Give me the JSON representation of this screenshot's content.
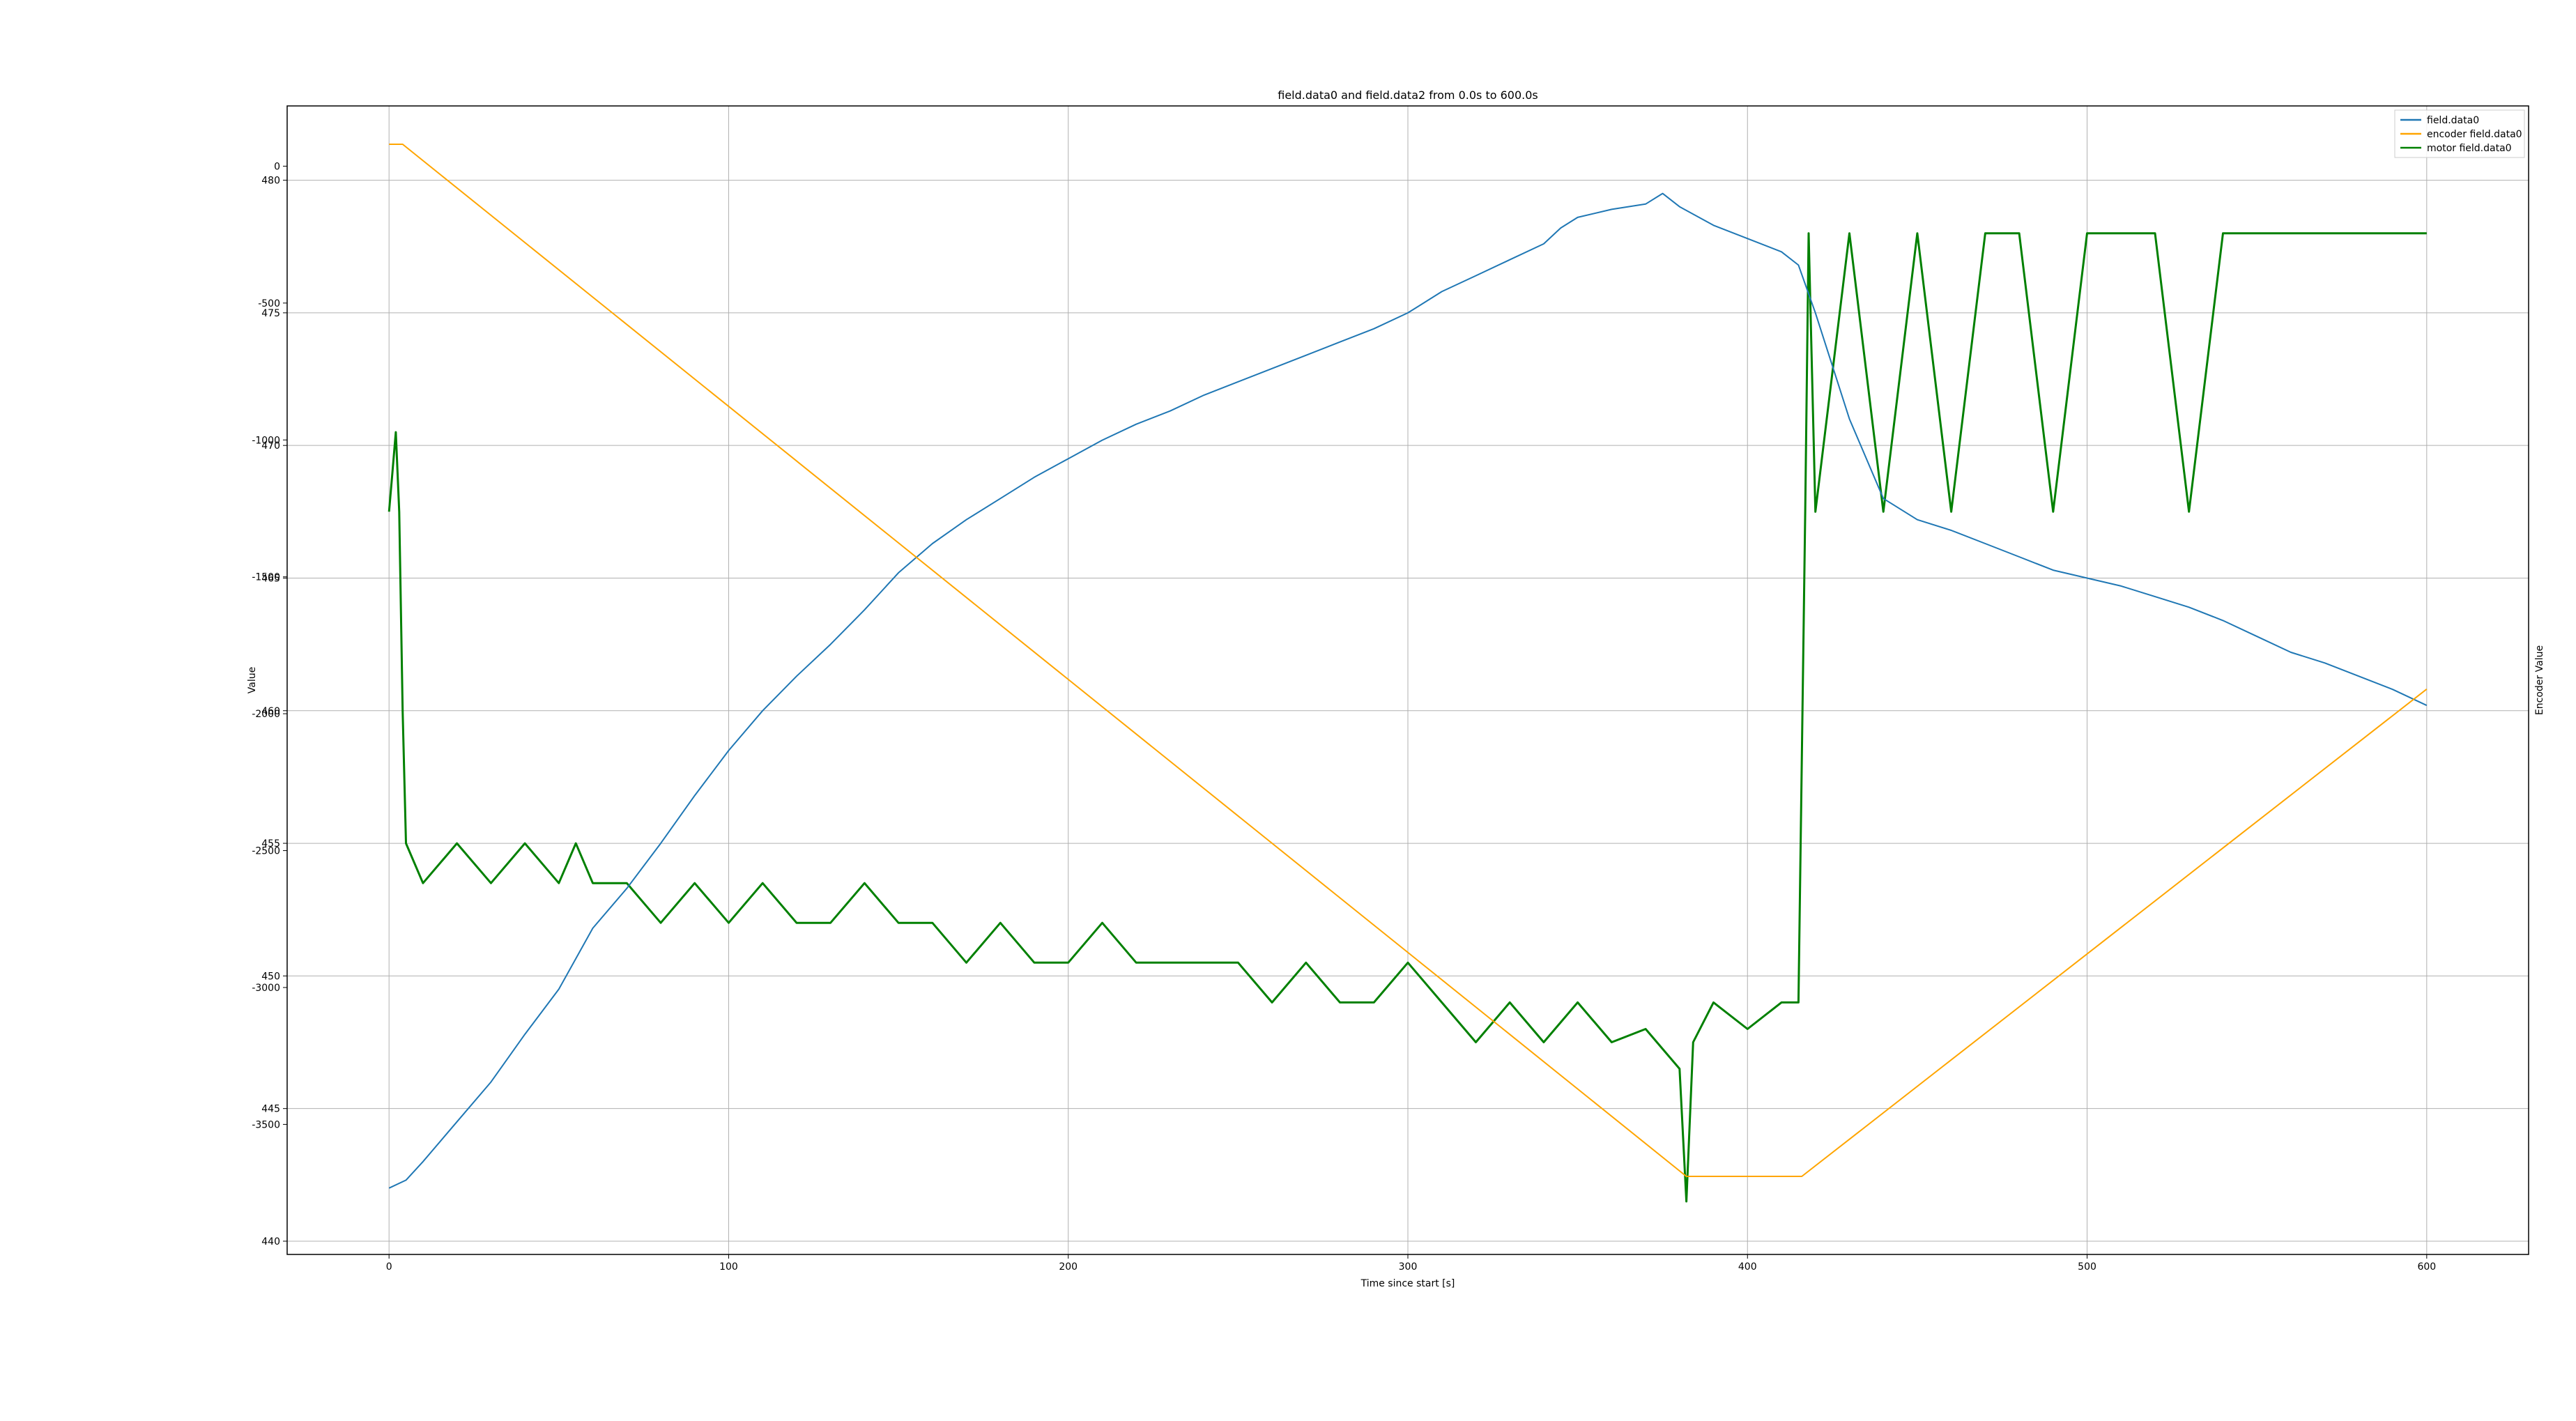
{
  "chart_data": {
    "type": "line",
    "title": "field.data0 and field.data2 from 0.0s to 600.0s",
    "xlabel": "Time since start [s]",
    "ylabel": "Value",
    "y2label": "Encoder Value",
    "xlim": [
      -30,
      630
    ],
    "ylim": [
      439.5,
      482.8
    ],
    "y2lim": [
      -3975,
      220
    ],
    "xticks": [
      0,
      100,
      200,
      300,
      400,
      500,
      600
    ],
    "yticks": [
      440,
      445,
      450,
      455,
      460,
      465,
      470,
      475,
      480
    ],
    "y2ticks": [
      -3500,
      -3000,
      -2500,
      -2000,
      -1500,
      -1000,
      -500,
      0
    ],
    "grid": true,
    "legend_position": "upper right",
    "series": [
      {
        "name": "field.data0",
        "color": "#1f77b4",
        "axis": "left",
        "x": [
          0,
          5,
          10,
          20,
          30,
          40,
          50,
          60,
          70,
          80,
          90,
          100,
          110,
          120,
          130,
          140,
          150,
          160,
          170,
          180,
          190,
          200,
          210,
          220,
          230,
          240,
          250,
          260,
          270,
          280,
          290,
          300,
          310,
          320,
          330,
          340,
          345,
          350,
          360,
          370,
          375,
          380,
          390,
          400,
          410,
          415,
          420,
          430,
          440,
          450,
          460,
          470,
          480,
          490,
          500,
          510,
          520,
          530,
          540,
          550,
          560,
          570,
          580,
          590,
          600
        ],
        "y": [
          442.0,
          442.3,
          443.0,
          444.5,
          446.0,
          447.8,
          449.5,
          451.8,
          453.3,
          455.0,
          456.8,
          458.5,
          460.0,
          461.3,
          462.5,
          463.8,
          465.2,
          466.3,
          467.2,
          468.0,
          468.8,
          469.5,
          470.2,
          470.8,
          471.3,
          471.9,
          472.4,
          472.9,
          473.4,
          473.9,
          474.4,
          475.0,
          475.8,
          476.4,
          477.0,
          477.6,
          478.2,
          478.6,
          478.9,
          479.1,
          479.5,
          479.0,
          478.3,
          477.8,
          477.3,
          476.8,
          475.0,
          471.0,
          468.0,
          467.2,
          466.8,
          466.3,
          465.8,
          465.3,
          465.0,
          464.7,
          464.3,
          463.9,
          463.4,
          462.8,
          462.2,
          461.8,
          461.3,
          460.8,
          460.2
        ]
      },
      {
        "name": "encoder field.data0",
        "color": "#ffa500",
        "axis": "right",
        "x": [
          0,
          4,
          382,
          416,
          600
        ],
        "y": [
          80,
          80,
          -3690,
          -3690,
          -1910
        ]
      },
      {
        "name": "motor field.data0",
        "color": "#008000",
        "axis": "left",
        "x": [
          0,
          1,
          2,
          3,
          4,
          5,
          10,
          20,
          30,
          40,
          50,
          55,
          60,
          70,
          80,
          90,
          100,
          110,
          120,
          130,
          140,
          150,
          160,
          170,
          180,
          190,
          200,
          210,
          220,
          230,
          240,
          250,
          260,
          270,
          280,
          290,
          300,
          310,
          320,
          330,
          340,
          350,
          360,
          370,
          380,
          382,
          384,
          390,
          400,
          410,
          415,
          417,
          418,
          420,
          430,
          440,
          450,
          460,
          470,
          480,
          490,
          500,
          510,
          520,
          530,
          540,
          550,
          560,
          570,
          580,
          590,
          600
        ],
        "y": [
          467.5,
          469.0,
          470.5,
          467.5,
          460.0,
          455.0,
          453.5,
          455.0,
          453.5,
          455.0,
          453.5,
          455.0,
          453.5,
          453.5,
          452.0,
          453.5,
          452.0,
          453.5,
          452.0,
          452.0,
          453.5,
          452.0,
          452.0,
          450.5,
          452.0,
          450.5,
          450.5,
          452.0,
          450.5,
          450.5,
          450.5,
          450.5,
          449.0,
          450.5,
          449.0,
          449.0,
          450.5,
          449.0,
          447.5,
          449.0,
          447.5,
          449.0,
          447.5,
          448.0,
          446.5,
          441.5,
          447.5,
          449.0,
          448.0,
          449.0,
          449.0,
          467.5,
          478.0,
          467.5,
          478.0,
          467.5,
          478.0,
          467.5,
          478.0,
          478.0,
          467.5,
          478.0,
          478.0,
          478.0,
          467.5,
          478.0,
          478.0,
          478.0,
          478.0,
          478.0,
          478.0,
          478.0
        ]
      }
    ]
  }
}
